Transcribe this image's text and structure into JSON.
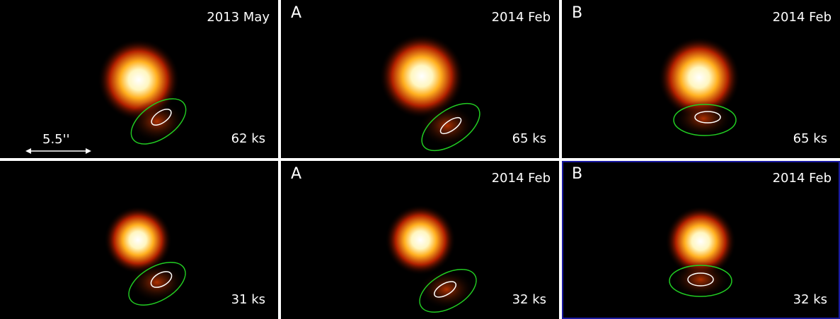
{
  "panels": [
    {
      "label": "",
      "epoch": "2013 May",
      "exposure": "62 ks"
    },
    {
      "label": "A",
      "epoch": "2014 Feb",
      "exposure": "65 ks"
    },
    {
      "label": "B",
      "epoch": "2014 Feb",
      "exposure": "65 ks"
    },
    {
      "label": "",
      "epoch": "",
      "exposure": "31 ks"
    },
    {
      "label": "A",
      "epoch": "2014 Feb",
      "exposure": "32 ks"
    },
    {
      "label": "B",
      "epoch": "2014 Feb",
      "exposure": "32 ks"
    }
  ],
  "scale_bar": {
    "label": "5.5''"
  },
  "colors": {
    "background": "#000000",
    "source_core": "#ffffff",
    "halo": "#ff8800",
    "outer_region": "#22cc22",
    "inner_region": "#ffffff",
    "divider": "#ffffff",
    "highlight_frame": "#1a1aa0"
  }
}
